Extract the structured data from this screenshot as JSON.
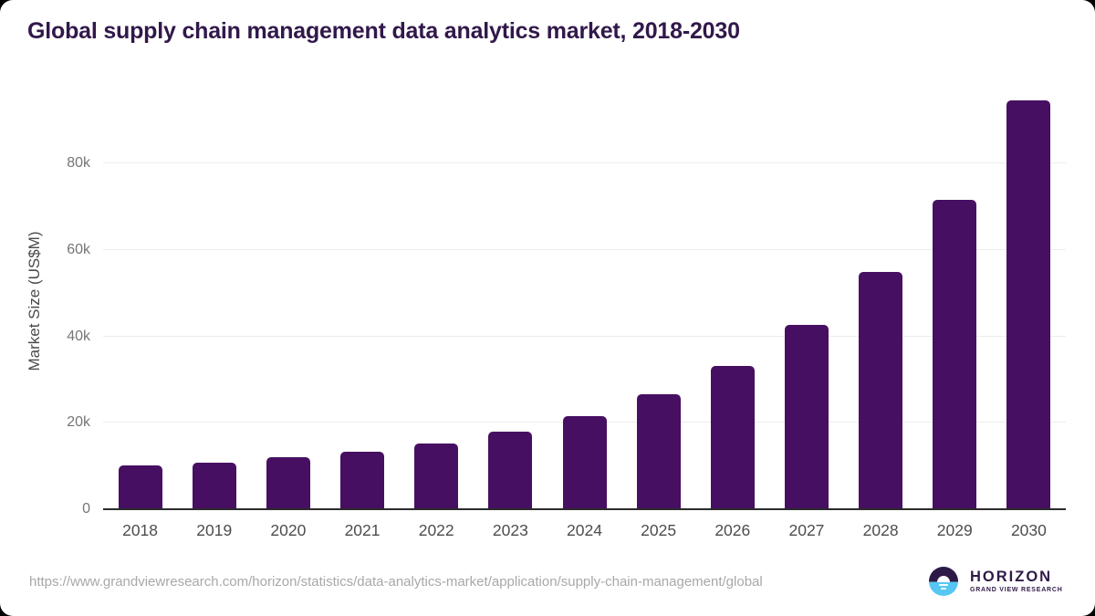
{
  "page": {
    "background_color": "#000000",
    "card_background_color": "#ffffff"
  },
  "chart_data": {
    "type": "bar",
    "title": "Global supply chain management data analytics market, 2018-2030",
    "title_color": "#31184a",
    "xlabel": "",
    "ylabel": "Market Size (US$M)",
    "categories": [
      "2018",
      "2019",
      "2020",
      "2021",
      "2022",
      "2023",
      "2024",
      "2025",
      "2026",
      "2027",
      "2028",
      "2029",
      "2030"
    ],
    "values": [
      10000,
      10600,
      11800,
      13100,
      15000,
      17800,
      21300,
      26400,
      33000,
      42400,
      54700,
      71400,
      94400
    ],
    "ylim": [
      0,
      96000
    ],
    "y_ticks": [
      {
        "label": "0",
        "value": 0
      },
      {
        "label": "20k",
        "value": 20000
      },
      {
        "label": "40k",
        "value": 40000
      },
      {
        "label": "60k",
        "value": 60000
      },
      {
        "label": "80k",
        "value": 80000
      }
    ],
    "grid": true,
    "legend": "none",
    "bar_color": "#470f62",
    "gridline_color": "#ececec",
    "axis_line_color": "#2b2b2b",
    "y_tick_label_color": "#757575",
    "x_tick_label_color": "#4d4d4d"
  },
  "footer": {
    "source_url": "https://www.grandviewresearch.com/horizon/statistics/data-analytics-market/application/supply-chain-management/global",
    "logo": {
      "icon": "horizon-sunrise-icon",
      "brand": "HORIZON",
      "sub_brand": "GRAND VIEW RESEARCH",
      "dark_color": "#2e1a47",
      "light_color": "#56c7f2"
    }
  }
}
